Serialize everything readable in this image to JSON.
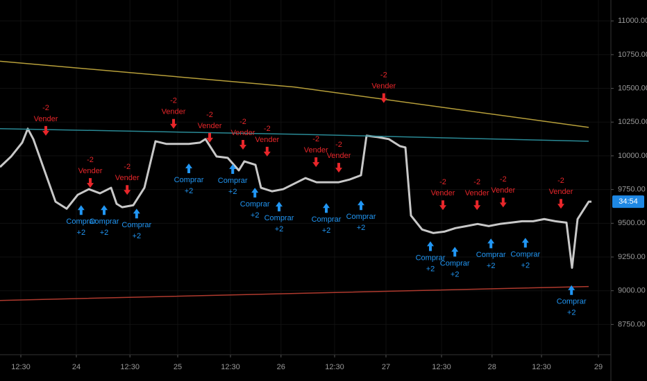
{
  "chart_data": {
    "type": "line",
    "xlim": [
      0,
      110
    ],
    "xticks": [
      {
        "value": 3.75,
        "label": "12:30"
      },
      {
        "value": 13.75,
        "label": "24"
      },
      {
        "value": 23.4,
        "label": "12:30"
      },
      {
        "value": 32,
        "label": "25"
      },
      {
        "value": 41.5,
        "label": "12:30"
      },
      {
        "value": 50.6,
        "label": "26"
      },
      {
        "value": 60.25,
        "label": "12:30"
      },
      {
        "value": 69.5,
        "label": "27"
      },
      {
        "value": 79.5,
        "label": "12:30"
      },
      {
        "value": 88.6,
        "label": "28"
      },
      {
        "value": 97.5,
        "label": "12:30"
      },
      {
        "value": 107.75,
        "label": "29"
      }
    ],
    "ylim": [
      8526,
      11155
    ],
    "yticks": [
      {
        "value": 8750,
        "label": "8750.00"
      },
      {
        "value": 9000,
        "label": "9000.00"
      },
      {
        "value": 9250,
        "label": "9250.00"
      },
      {
        "value": 9500,
        "label": "9500.00"
      },
      {
        "value": 9750,
        "label": "9750.00"
      },
      {
        "value": 10000,
        "label": "10000.00"
      },
      {
        "value": 10250,
        "label": "10250.00"
      },
      {
        "value": 10500,
        "label": "10500.00"
      },
      {
        "value": 10750,
        "label": "10750.00"
      },
      {
        "value": 11000,
        "label": "11000.00"
      }
    ],
    "grid": true,
    "series": [
      {
        "color": "#c8c8c8",
        "x": [
          0,
          2,
          4,
          5,
          6,
          8,
          10,
          12,
          14,
          16,
          18,
          20,
          21,
          22,
          24,
          26,
          28,
          30,
          32,
          34,
          36,
          37,
          39,
          41,
          43,
          44,
          46,
          47,
          49,
          51,
          53,
          55,
          57,
          59,
          61,
          63,
          65,
          66,
          68,
          70,
          72,
          73,
          74,
          76,
          78,
          80,
          82,
          84,
          86,
          88,
          90,
          92,
          94,
          96,
          98,
          100,
          102,
          103,
          104,
          106,
          106.5
        ],
        "values": [
          9917,
          9995,
          10098,
          10201,
          10124,
          9892,
          9660,
          9608,
          9711,
          9753,
          9722,
          9763,
          9644,
          9619,
          9634,
          9763,
          10108,
          10088,
          10088,
          10088,
          10098,
          10124,
          9995,
          9985,
          9892,
          9959,
          9933,
          9763,
          9737,
          9753,
          9794,
          9835,
          9804,
          9804,
          9804,
          9825,
          9856,
          10149,
          10139,
          10124,
          10072,
          10062,
          9557,
          9454,
          9428,
          9438,
          9464,
          9479,
          9495,
          9479,
          9495,
          9505,
          9515,
          9515,
          9531,
          9515,
          9505,
          9170,
          9531,
          9660,
          9660
        ]
      },
      {
        "color": "#b8a03a",
        "x": [
          0,
          53,
          106
        ],
        "values": [
          10701,
          10510,
          10211
        ]
      },
      {
        "color": "#2a8a96",
        "x": [
          0,
          53,
          106
        ],
        "values": [
          10201,
          10160,
          10108
        ]
      },
      {
        "color": "#b03a2e",
        "x": [
          0,
          53,
          106
        ],
        "values": [
          8928,
          8980,
          9031
        ]
      }
    ],
    "sell_color": "#e8262a",
    "buy_color": "#2196f3",
    "sells": [
      {
        "label": "Vender",
        "qty": "-2",
        "x": 8.25,
        "y": 10149
      },
      {
        "label": "Vender",
        "qty": "-2",
        "x": 16.25,
        "y": 9763
      },
      {
        "label": "Vender",
        "qty": "-2",
        "x": 22.9,
        "y": 9711
      },
      {
        "label": "Vender",
        "qty": "-2",
        "x": 31.25,
        "y": 10201
      },
      {
        "label": "Vender",
        "qty": "-2",
        "x": 37.75,
        "y": 10098
      },
      {
        "label": "Vender",
        "qty": "-2",
        "x": 43.75,
        "y": 10046
      },
      {
        "label": "Vender",
        "qty": "-2",
        "x": 48.1,
        "y": 9995
      },
      {
        "label": "Vender",
        "qty": "-2",
        "x": 56.9,
        "y": 9917
      },
      {
        "label": "Vender",
        "qty": "-2",
        "x": 61,
        "y": 9876
      },
      {
        "label": "Vender",
        "qty": "-2",
        "x": 69.1,
        "y": 10392
      },
      {
        "label": "Vender",
        "qty": "-2",
        "x": 79.75,
        "y": 9598
      },
      {
        "label": "Vender",
        "qty": "-2",
        "x": 85.9,
        "y": 9598
      },
      {
        "label": "Vender",
        "qty": "-2",
        "x": 90.6,
        "y": 9618
      },
      {
        "label": "Vender",
        "qty": "-2",
        "x": 101,
        "y": 9608
      }
    ],
    "buys": [
      {
        "label": "Comprar",
        "qty": "+2",
        "x": 14.6,
        "y": 9634
      },
      {
        "label": "Comprar",
        "qty": "+2",
        "x": 18.75,
        "y": 9634
      },
      {
        "label": "Comprar",
        "qty": "+2",
        "x": 24.6,
        "y": 9608
      },
      {
        "label": "Comprar",
        "qty": "+2",
        "x": 34,
        "y": 9943
      },
      {
        "label": "Comprar",
        "qty": "+2",
        "x": 41.9,
        "y": 9938
      },
      {
        "label": "Comprar",
        "qty": "+2",
        "x": 45.9,
        "y": 9763
      },
      {
        "label": "Comprar",
        "qty": "+2",
        "x": 50.25,
        "y": 9660
      },
      {
        "label": "Comprar",
        "qty": "+2",
        "x": 58.75,
        "y": 9649
      },
      {
        "label": "Comprar",
        "qty": "+2",
        "x": 65,
        "y": 9670
      },
      {
        "label": "Comprar",
        "qty": "+2",
        "x": 77.5,
        "y": 9366
      },
      {
        "label": "Comprar",
        "qty": "+2",
        "x": 81.9,
        "y": 9325
      },
      {
        "label": "Comprar",
        "qty": "+2",
        "x": 88.4,
        "y": 9387
      },
      {
        "label": "Comprar",
        "qty": "+2",
        "x": 94.6,
        "y": 9392
      },
      {
        "label": "Comprar",
        "qty": "+2",
        "x": 102.9,
        "y": 9041
      }
    ],
    "countdown": "34:54"
  }
}
